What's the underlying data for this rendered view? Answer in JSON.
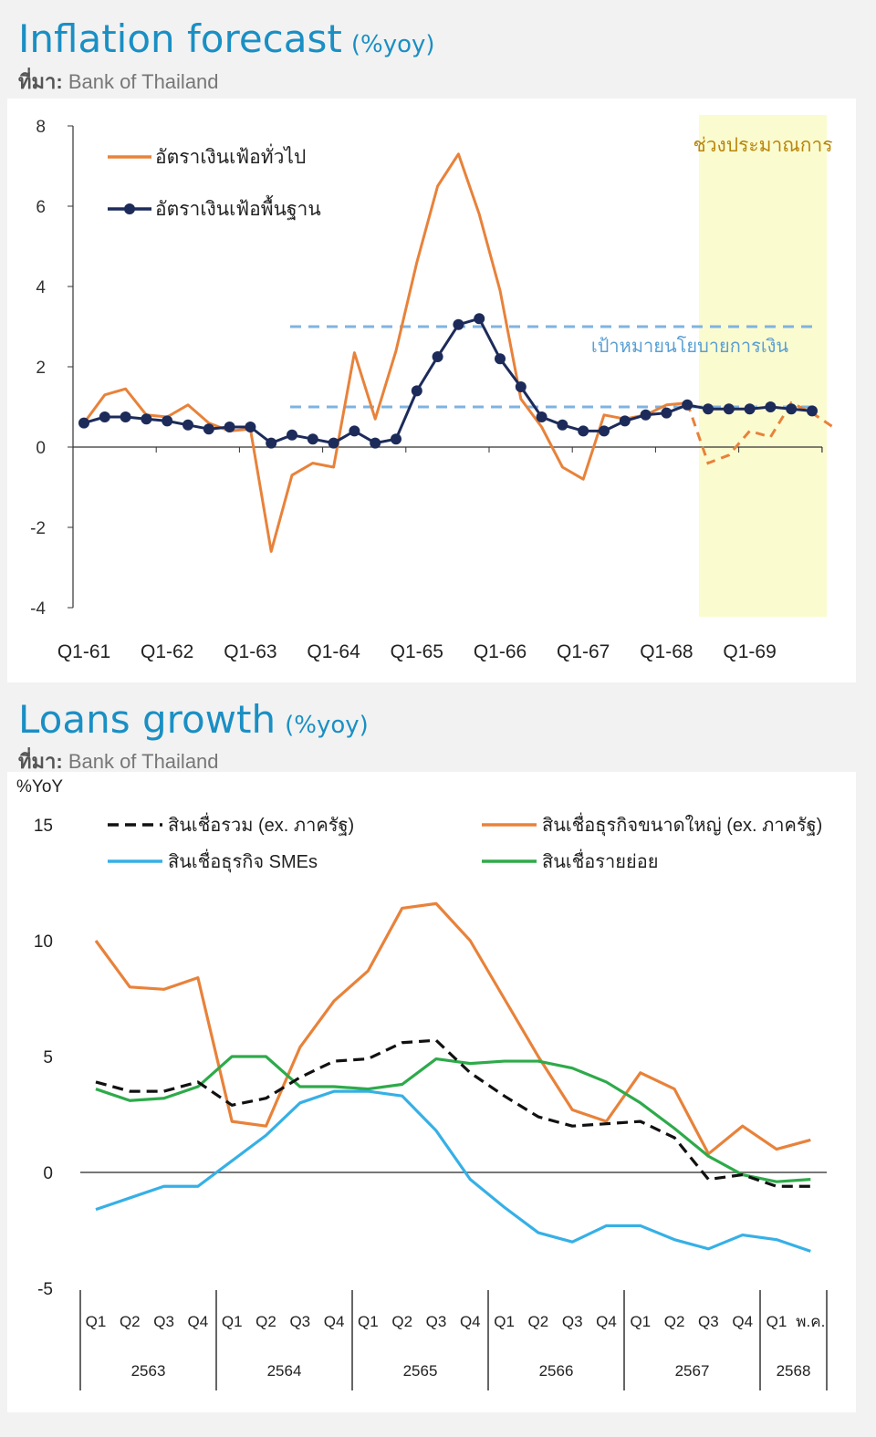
{
  "charts": {
    "inflation": {
      "title": "Inflation forecast",
      "unit": "(%yoy)",
      "source_prefix": "ที่มา:",
      "source_name": "Bank of Thailand"
    },
    "loans": {
      "title": "Loans growth",
      "unit": "(%yoy)",
      "source_prefix": "ที่มา:",
      "source_name": "Bank of Thailand"
    }
  },
  "colors": {
    "title": "#1a8fc4",
    "orange": "#e8823a",
    "navy": "#1c2b5a",
    "dash": "#7fb3e0",
    "forecast_band": "#fbfbd0",
    "forecast_text": "#b8860b",
    "sme_blue": "#36b0e6",
    "retail_green": "#2eaa4a",
    "total_black": "#111111"
  },
  "chart_data": [
    {
      "type": "line",
      "title": "Inflation forecast",
      "ylabel": "%yoy",
      "ylim": [
        -4,
        8
      ],
      "yticks": [
        "8",
        "6",
        "4",
        "2",
        "0",
        "-2",
        "-4"
      ],
      "x_tick_labels": [
        "Q1-61",
        "Q1-62",
        "Q1-63",
        "Q1-64",
        "Q1-65",
        "Q1-66",
        "Q1-67",
        "Q1-68",
        "Q1-69"
      ],
      "forecast_label": "ช่วงประมาณการ",
      "target_label": "เป้าหมายนโยบายการเงิน",
      "target_band": [
        1,
        3
      ],
      "series": [
        {
          "name": "อัตราเงินเฟ้อทั่วไป",
          "values": [
            0.6,
            1.3,
            1.45,
            0.8,
            0.75,
            1.05,
            0.6,
            0.4,
            0.45,
            -2.6,
            -0.7,
            -0.4,
            -0.5,
            2.35,
            0.7,
            2.4,
            4.6,
            6.5,
            7.3,
            5.8,
            3.9,
            1.2,
            0.5,
            -0.5,
            -0.8,
            0.8,
            0.7,
            0.8,
            1.05,
            1.1
          ],
          "forecast": [
            -0.4,
            -0.2,
            0.4,
            0.25,
            1.1,
            0.85,
            0.5
          ]
        },
        {
          "name": "อัตราเงินเฟ้อพื้นฐาน",
          "values": [
            0.6,
            0.75,
            0.75,
            0.7,
            0.65,
            0.55,
            0.45,
            0.5,
            0.5,
            0.1,
            0.3,
            0.2,
            0.1,
            0.4,
            0.1,
            0.2,
            1.4,
            2.25,
            3.05,
            3.2,
            2.2,
            1.5,
            0.75,
            0.55,
            0.4,
            0.4,
            0.65,
            0.8,
            0.85,
            1.05,
            0.95,
            0.95,
            0.95,
            1.0,
            0.95,
            0.9
          ]
        }
      ]
    },
    {
      "type": "line",
      "title": "Loans growth",
      "ylabel": "%YoY",
      "ylim": [
        -5,
        15
      ],
      "yticks": [
        "15",
        "10",
        "5",
        "0",
        "-5"
      ],
      "categories": [
        "Q1",
        "Q2",
        "Q3",
        "Q4",
        "Q1",
        "Q2",
        "Q3",
        "Q4",
        "Q1",
        "Q2",
        "Q3",
        "Q4",
        "Q1",
        "Q2",
        "Q3",
        "Q4",
        "Q1",
        "Q2",
        "Q3",
        "Q4",
        "Q1",
        "พ.ค."
      ],
      "year_labels": [
        "2563",
        "2564",
        "2565",
        "2566",
        "2567",
        "2568"
      ],
      "series": [
        {
          "name": "สินเชื่อรวม (ex. ภาครัฐ)",
          "values": [
            3.9,
            3.5,
            3.5,
            3.9,
            2.9,
            3.2,
            4.1,
            4.8,
            4.9,
            5.6,
            5.7,
            4.3,
            3.3,
            2.4,
            2.0,
            2.1,
            2.2,
            1.5,
            -0.3,
            -0.1,
            -0.6,
            -0.6
          ]
        },
        {
          "name": "สินเชื่อธุรกิจขนาดใหญ่ (ex. ภาครัฐ)",
          "values": [
            10.0,
            8.0,
            7.9,
            8.4,
            2.2,
            2.0,
            5.4,
            7.4,
            8.7,
            11.4,
            11.6,
            10.0,
            7.5,
            5.0,
            2.7,
            2.2,
            4.3,
            3.6,
            0.8,
            2.0,
            1.0,
            1.4
          ]
        },
        {
          "name": "สินเชื่อธุรกิจ SMEs",
          "values": [
            -1.6,
            -1.1,
            -0.6,
            -0.6,
            0.5,
            1.6,
            3.0,
            3.5,
            3.5,
            3.3,
            1.8,
            -0.3,
            -1.5,
            -2.6,
            -3.0,
            -2.3,
            -2.3,
            -2.9,
            -3.3,
            -2.7,
            -2.9,
            -3.4
          ]
        },
        {
          "name": "สินเชื่อรายย่อย",
          "values": [
            3.6,
            3.1,
            3.2,
            3.7,
            5.0,
            5.0,
            3.7,
            3.7,
            3.6,
            3.8,
            4.9,
            4.7,
            4.8,
            4.8,
            4.5,
            3.9,
            3.0,
            1.9,
            0.7,
            -0.1,
            -0.4,
            -0.3
          ]
        }
      ]
    }
  ]
}
